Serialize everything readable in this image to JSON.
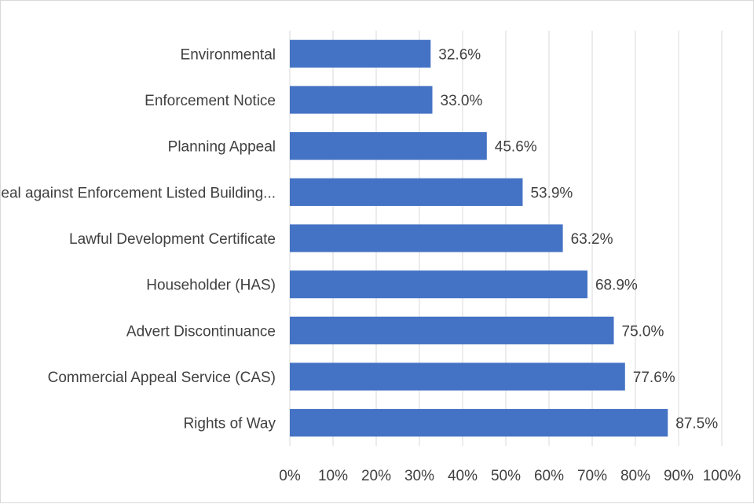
{
  "chart_data": {
    "type": "bar",
    "orientation": "horizontal",
    "title": "",
    "xlabel": "",
    "ylabel": "",
    "categories": [
      "Environmental",
      "Enforcement Notice",
      "Planning Appeal",
      "Appeal against Enforcement Listed Building...",
      "Lawful Development Certificate",
      "Householder (HAS)",
      "Advert Discontinuance",
      "Commercial Appeal Service (CAS)",
      "Rights of Way"
    ],
    "values": [
      32.6,
      33.0,
      45.6,
      53.9,
      63.2,
      68.9,
      75.0,
      77.6,
      87.5
    ],
    "value_labels": [
      "32.6%",
      "33.0%",
      "45.6%",
      "53.9%",
      "63.2%",
      "68.9%",
      "75.0%",
      "77.6%",
      "87.5%"
    ],
    "xlim": [
      0,
      100
    ],
    "x_ticks": [
      0,
      10,
      20,
      30,
      40,
      50,
      60,
      70,
      80,
      90,
      100
    ],
    "x_tick_labels": [
      "0%",
      "10%",
      "20%",
      "30%",
      "40%",
      "50%",
      "60%",
      "70%",
      "80%",
      "90%",
      "100%"
    ],
    "grid": "vertical",
    "legend": "none",
    "bar_color": "#4472c4"
  }
}
